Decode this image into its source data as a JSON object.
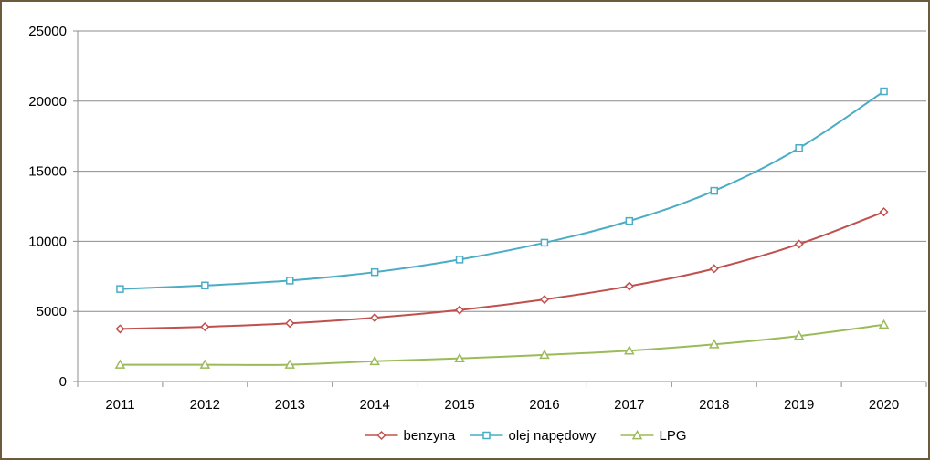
{
  "chart_data": {
    "type": "line",
    "title": "",
    "xlabel": "",
    "ylabel": "",
    "categories": [
      "2011",
      "2012",
      "2013",
      "2014",
      "2015",
      "2016",
      "2017",
      "2018",
      "2019",
      "2020"
    ],
    "ylim": [
      0,
      25000
    ],
    "yticks": [
      "0",
      "5000",
      "10000",
      "15000",
      "20000",
      "25000"
    ],
    "grid": "horizontal",
    "legend_position": "bottom",
    "series": [
      {
        "name": "benzyna",
        "color": "#c0504d",
        "marker": "diamond",
        "values": [
          3750,
          3900,
          4150,
          4550,
          5100,
          5850,
          6800,
          8050,
          9800,
          12100
        ]
      },
      {
        "name": "olej napędowy",
        "color": "#4bacc6",
        "marker": "square",
        "values": [
          6600,
          6850,
          7200,
          7800,
          8700,
          9900,
          11450,
          13600,
          16650,
          20700
        ]
      },
      {
        "name": "LPG",
        "color": "#9bbb59",
        "marker": "triangle",
        "values": [
          1200,
          1200,
          1200,
          1450,
          1650,
          1900,
          2200,
          2650,
          3250,
          4050
        ]
      }
    ]
  }
}
